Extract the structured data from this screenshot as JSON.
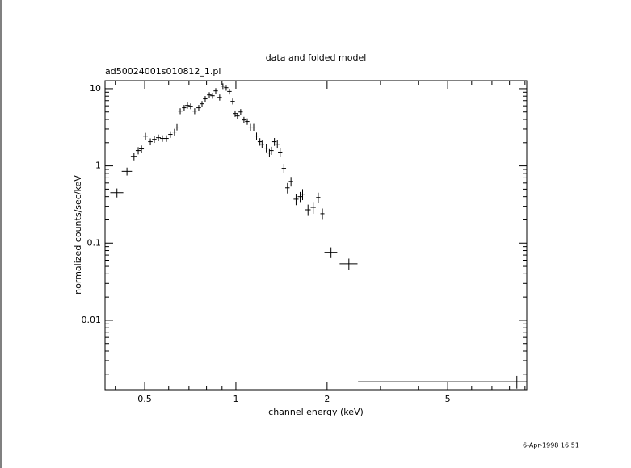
{
  "chart_data": {
    "type": "scatter",
    "title": "data and folded model",
    "subtitle": "ad50024001s010812_1.pi",
    "xlabel": "channel energy (keV)",
    "ylabel": "normalized counts/sec/keV",
    "timestamp": "6-Apr-1998 16:51",
    "xscale": "log",
    "yscale": "log",
    "xlim": [
      0.37,
      9.12
    ],
    "ylim": [
      0.00126,
      12.7
    ],
    "xticks": [
      0.5,
      1,
      2,
      5
    ],
    "yticks": [
      10,
      1,
      0.1,
      0.01
    ],
    "xminorticks": [
      0.4,
      0.6,
      0.7,
      0.8,
      0.9,
      3,
      4,
      6,
      7,
      8,
      9
    ],
    "yminorticks": [
      0.002,
      0.003,
      0.004,
      0.005,
      0.006,
      0.007,
      0.008,
      0.009,
      0.02,
      0.03,
      0.04,
      0.05,
      0.06,
      0.07,
      0.08,
      0.09,
      0.2,
      0.3,
      0.4,
      0.5,
      0.6,
      0.7,
      0.8,
      0.9,
      2,
      3,
      4,
      5,
      6,
      7,
      8,
      9
    ],
    "color": "#000000",
    "x": [
      0.405,
      0.437,
      0.461,
      0.476,
      0.488,
      0.503,
      0.522,
      0.538,
      0.555,
      0.572,
      0.59,
      0.608,
      0.627,
      0.639,
      0.655,
      0.675,
      0.692,
      0.709,
      0.731,
      0.754,
      0.773,
      0.792,
      0.817,
      0.837,
      0.858,
      0.884,
      0.906,
      0.929,
      0.952,
      0.976,
      0.994,
      1.012,
      1.037,
      1.063,
      1.09,
      1.117,
      1.145,
      1.17,
      1.2,
      1.22,
      1.26,
      1.29,
      1.31,
      1.34,
      1.37,
      1.4,
      1.44,
      1.48,
      1.52,
      1.58,
      1.63,
      1.66,
      1.73,
      1.8,
      1.87,
      1.93,
      2.06,
      2.36,
      8.46
    ],
    "y": [
      0.45,
      0.85,
      1.33,
      1.58,
      1.66,
      2.43,
      2.06,
      2.21,
      2.32,
      2.27,
      2.27,
      2.56,
      2.75,
      3.18,
      5.13,
      5.66,
      6.07,
      5.93,
      5.13,
      5.66,
      6.37,
      7.38,
      8.3,
      8.1,
      9.36,
      7.7,
      10.8,
      10.3,
      9.2,
      6.85,
      4.77,
      4.44,
      5.0,
      3.94,
      3.76,
      3.18,
      3.18,
      2.44,
      2.06,
      1.91,
      1.7,
      1.47,
      1.58,
      2.06,
      1.91,
      1.51,
      0.93,
      0.52,
      0.63,
      0.37,
      0.4,
      0.43,
      0.27,
      0.29,
      0.39,
      0.24,
      0.076,
      0.054,
      0.0016
    ],
    "xerr": [
      [
        0.02,
        0.02
      ],
      [
        0.017,
        0.017
      ],
      [
        0.011,
        0.011
      ],
      [
        0.009,
        0.009
      ],
      [
        0.009,
        0.009
      ],
      [
        0.009,
        0.009
      ],
      [
        0.009,
        0.009
      ],
      [
        0.009,
        0.009
      ],
      [
        0.01,
        0.01
      ],
      [
        0.01,
        0.01
      ],
      [
        0.01,
        0.01
      ],
      [
        0.01,
        0.01
      ],
      [
        0.011,
        0.011
      ],
      [
        0.011,
        0.011
      ],
      [
        0.011,
        0.011
      ],
      [
        0.011,
        0.011
      ],
      [
        0.012,
        0.012
      ],
      [
        0.012,
        0.012
      ],
      [
        0.012,
        0.012
      ],
      [
        0.013,
        0.013
      ],
      [
        0.013,
        0.013
      ],
      [
        0.013,
        0.013
      ],
      [
        0.014,
        0.014
      ],
      [
        0.014,
        0.014
      ],
      [
        0.014,
        0.014
      ],
      [
        0.015,
        0.015
      ],
      [
        0.015,
        0.015
      ],
      [
        0.015,
        0.015
      ],
      [
        0.016,
        0.016
      ],
      [
        0.016,
        0.016
      ],
      [
        0.016,
        0.016
      ],
      [
        0.017,
        0.017
      ],
      [
        0.017,
        0.017
      ],
      [
        0.018,
        0.018
      ],
      [
        0.018,
        0.018
      ],
      [
        0.019,
        0.019
      ],
      [
        0.019,
        0.019
      ],
      [
        0.02,
        0.02
      ],
      [
        0.02,
        0.02
      ],
      [
        0.02,
        0.02
      ],
      [
        0.021,
        0.021
      ],
      [
        0.021,
        0.021
      ],
      [
        0.022,
        0.022
      ],
      [
        0.022,
        0.022
      ],
      [
        0.023,
        0.023
      ],
      [
        0.023,
        0.023
      ],
      [
        0.024,
        0.024
      ],
      [
        0.025,
        0.025
      ],
      [
        0.025,
        0.025
      ],
      [
        0.03,
        0.03
      ],
      [
        0.03,
        0.03
      ],
      [
        0.03,
        0.03
      ],
      [
        0.035,
        0.035
      ],
      [
        0.035,
        0.035
      ],
      [
        0.03,
        0.03
      ],
      [
        0.03,
        0.03
      ],
      [
        0.1,
        0.1
      ],
      [
        0.16,
        0.16
      ],
      [
        5.93,
        0.64
      ]
    ],
    "yerr": [
      0.06,
      0.1,
      0.15,
      0.17,
      0.18,
      0.25,
      0.21,
      0.22,
      0.23,
      0.22,
      0.22,
      0.25,
      0.27,
      0.3,
      0.45,
      0.5,
      0.55,
      0.5,
      0.45,
      0.5,
      0.55,
      0.65,
      0.7,
      0.7,
      0.8,
      0.7,
      0.9,
      0.9,
      0.8,
      0.6,
      0.45,
      0.4,
      0.45,
      0.38,
      0.36,
      0.32,
      0.32,
      0.26,
      0.23,
      0.22,
      0.2,
      0.18,
      0.19,
      0.24,
      0.23,
      0.19,
      0.13,
      0.08,
      0.09,
      0.06,
      0.06,
      0.07,
      0.045,
      0.05,
      0.06,
      0.04,
      0.012,
      0.009,
      0.0003
    ]
  }
}
